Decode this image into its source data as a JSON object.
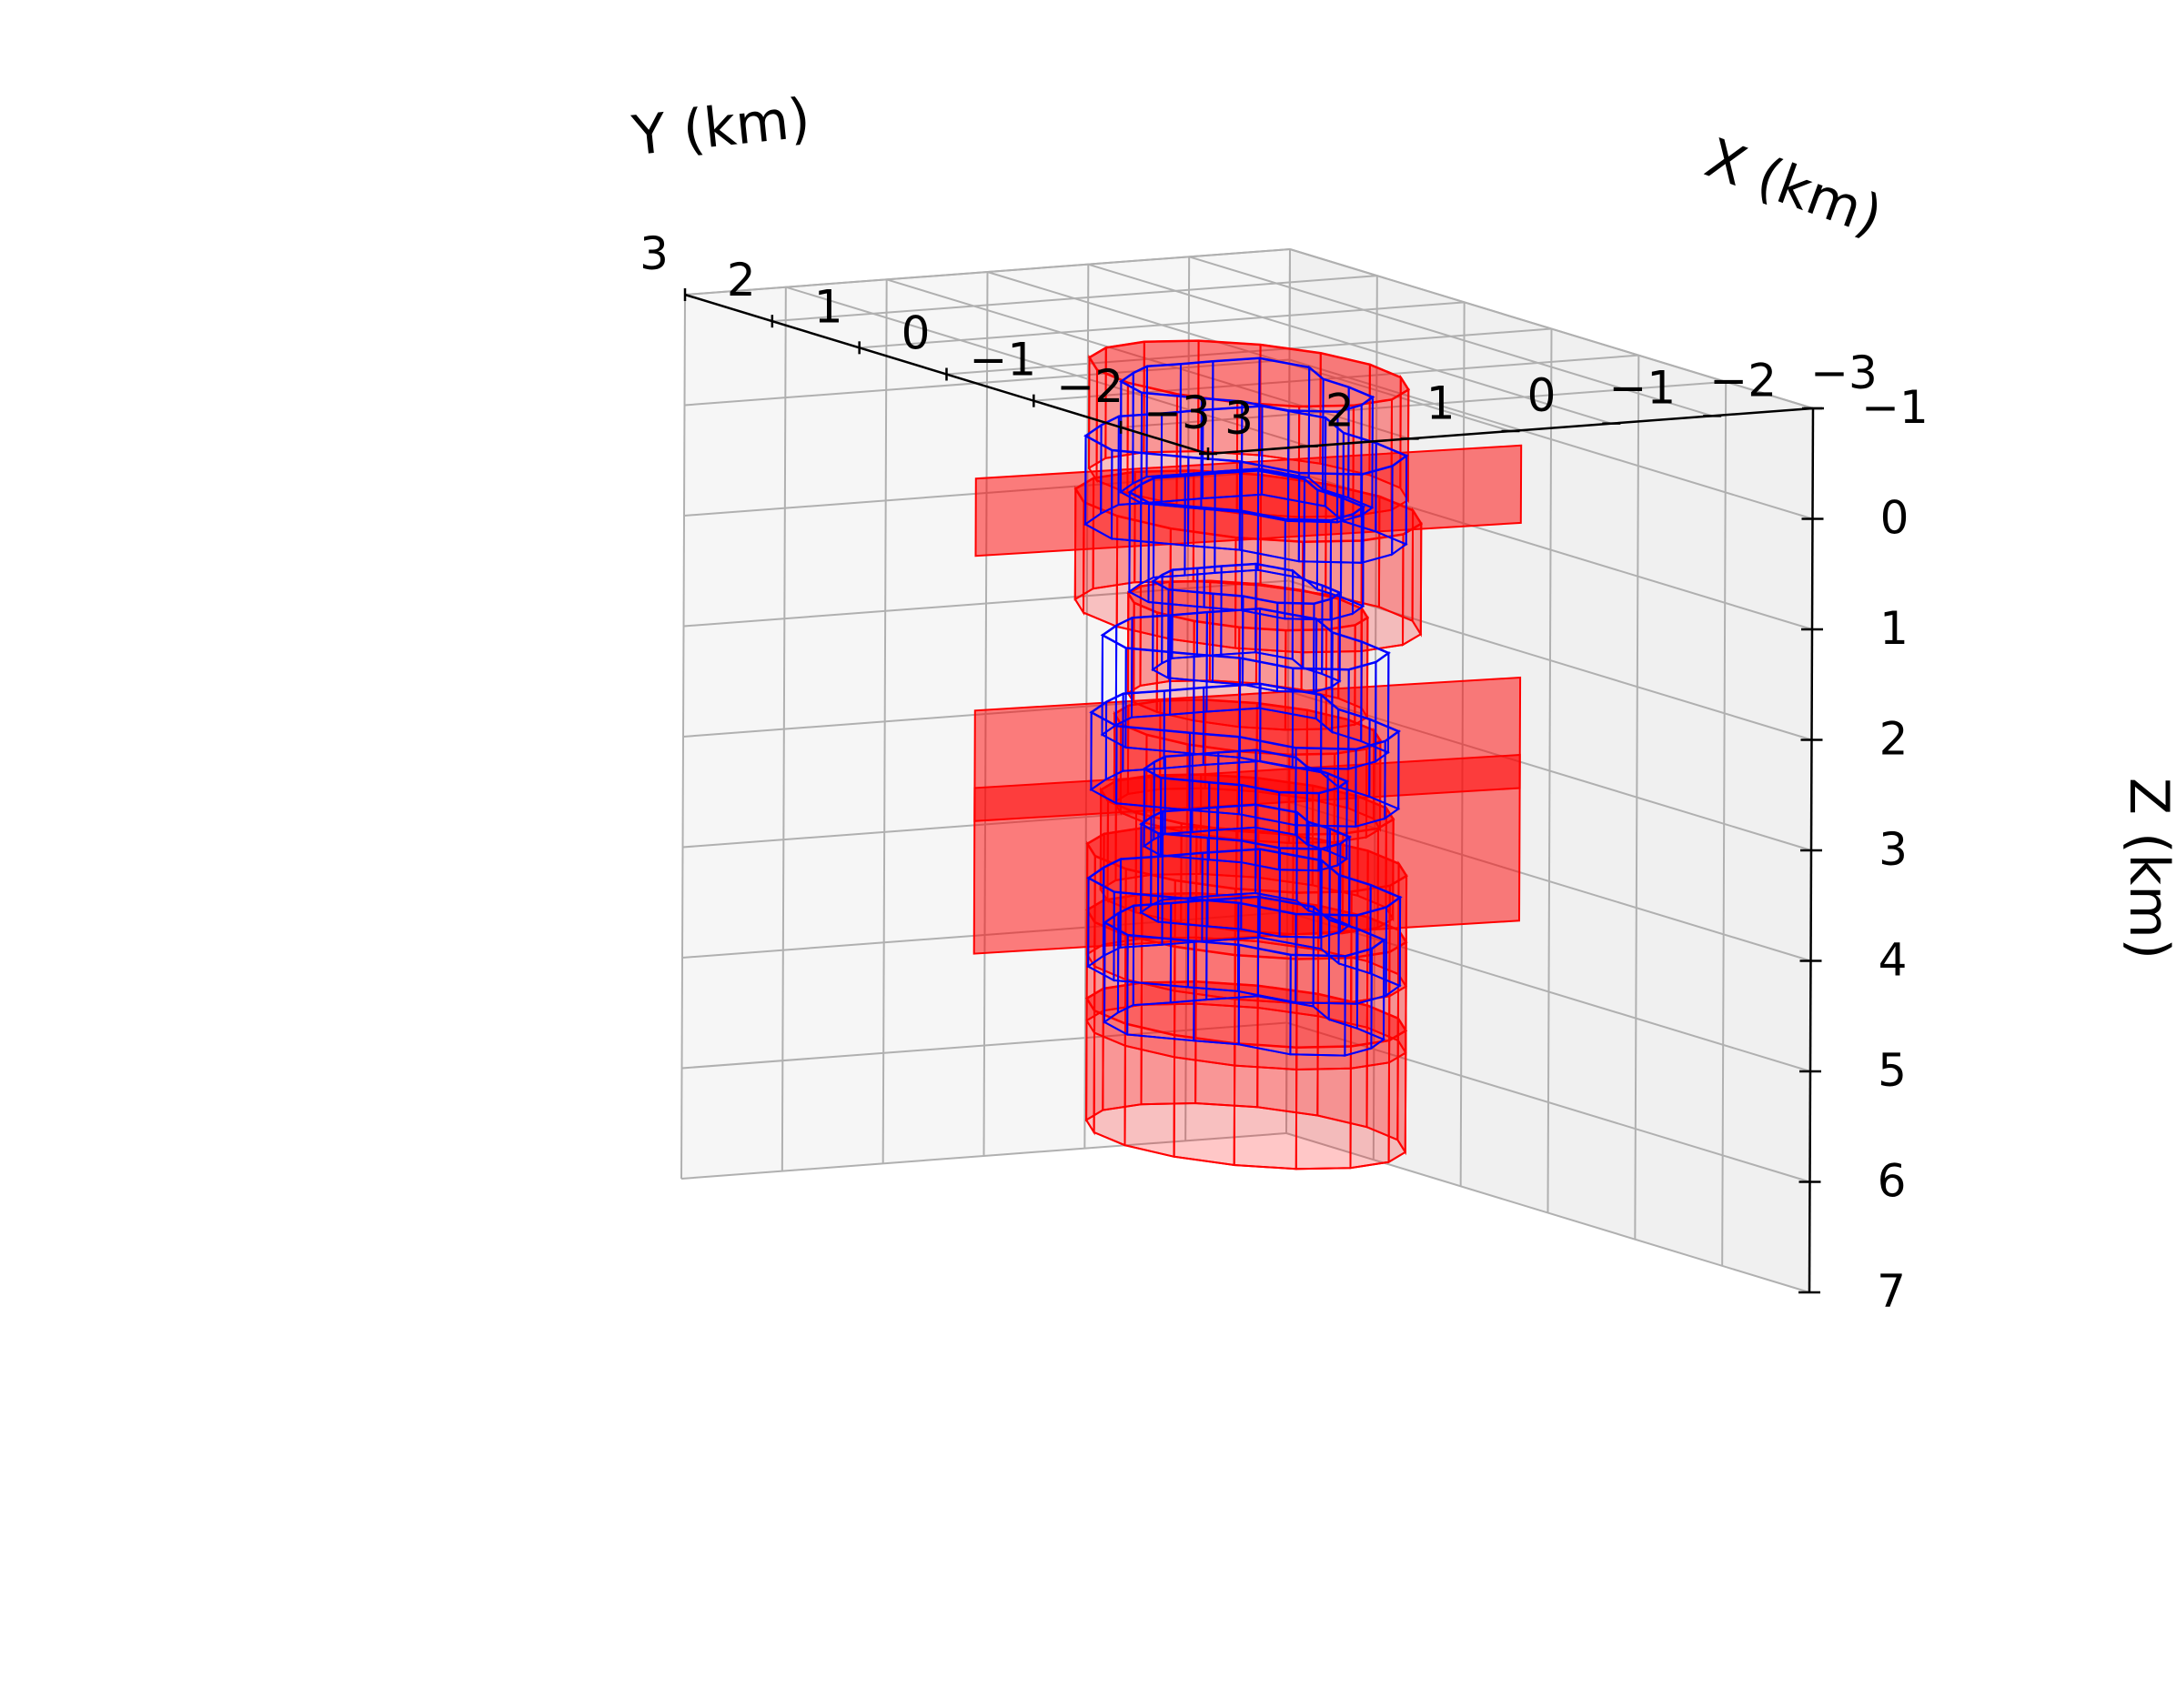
{
  "chart_data": {
    "type": "3d-prism-stack",
    "xlabel": "X (km)",
    "ylabel": "Y (km)",
    "zlabel": "Z (km)",
    "x_ticks": [
      "3",
      "2",
      "1",
      "0",
      "−1",
      "−2",
      "−3"
    ],
    "y_ticks": [
      "3",
      "2",
      "1",
      "0",
      "−1",
      "−2",
      "−3"
    ],
    "z_ticks": [
      "−1",
      "0",
      "1",
      "2",
      "3",
      "4",
      "5",
      "6",
      "7"
    ],
    "xlim": [
      -3,
      3
    ],
    "ylim": [
      -3,
      3
    ],
    "zlim": [
      -1,
      7
    ],
    "z_inverted": true,
    "grid": true,
    "series": [
      {
        "color": "#ff0000",
        "style": "filled",
        "bodies": [
          {
            "shape": "cylinder",
            "center": [
              0,
              0
            ],
            "radius": 1.2,
            "z_top": -0.8,
            "z_bottom": 0.2
          },
          {
            "shape": "slab",
            "center": [
              0,
              0
            ],
            "z_top": 0.0,
            "z_bottom": 0.7
          },
          {
            "shape": "cylinder",
            "center": [
              0,
              0
            ],
            "radius": 1.3,
            "z_top": 0.4,
            "z_bottom": 1.4
          },
          {
            "shape": "cylinder",
            "center": [
              0,
              0
            ],
            "radius": 0.9,
            "z_top": 1.3,
            "z_bottom": 2.2
          },
          {
            "shape": "slab",
            "center": [
              0,
              0
            ],
            "z_top": 2.1,
            "z_bottom": 3.1
          },
          {
            "shape": "cylinder",
            "center": [
              0,
              0
            ],
            "radius": 1.0,
            "z_top": 2.4,
            "z_bottom": 3.2
          },
          {
            "shape": "slab",
            "center": [
              0,
              0
            ],
            "z_top": 2.8,
            "z_bottom": 4.3
          },
          {
            "shape": "cylinder",
            "center": [
              0,
              0
            ],
            "radius": 1.1,
            "z_top": 3.1,
            "z_bottom": 4.0
          },
          {
            "shape": "cylinder",
            "center": [
              0,
              0
            ],
            "radius": 1.2,
            "z_top": 3.6,
            "z_bottom": 4.6
          },
          {
            "shape": "cylinder",
            "center": [
              0,
              0
            ],
            "radius": 1.2,
            "z_top": 4.2,
            "z_bottom": 5.2
          },
          {
            "shape": "cylinder",
            "center": [
              0,
              0
            ],
            "radius": 1.2,
            "z_top": 5.0,
            "z_bottom": 6.1
          }
        ]
      },
      {
        "color": "#0000ff",
        "style": "wireframe",
        "bodies": [
          {
            "shape": "irregular-prism",
            "center": [
              0,
              0
            ],
            "z_top": -0.7,
            "z_bottom": 0.3
          },
          {
            "shape": "irregular-prism",
            "center": [
              0,
              0
            ],
            "z_top": -0.2,
            "z_bottom": 0.6
          },
          {
            "shape": "irregular-prism",
            "center": [
              0,
              0
            ],
            "z_top": 0.3,
            "z_bottom": 1.2
          },
          {
            "shape": "irregular-prism",
            "center": [
              0,
              0
            ],
            "z_top": 1.1,
            "z_bottom": 1.9
          },
          {
            "shape": "irregular-prism",
            "center": [
              0,
              0
            ],
            "z_top": 1.6,
            "z_bottom": 2.5
          },
          {
            "shape": "irregular-prism",
            "center": [
              0,
              0
            ],
            "z_top": 2.3,
            "z_bottom": 3.0
          },
          {
            "shape": "irregular-prism",
            "center": [
              0,
              0
            ],
            "z_top": 2.8,
            "z_bottom": 3.5
          },
          {
            "shape": "irregular-prism",
            "center": [
              0,
              0
            ],
            "z_top": 3.3,
            "z_bottom": 4.1
          },
          {
            "shape": "irregular-prism",
            "center": [
              0,
              0
            ],
            "z_top": 3.8,
            "z_bottom": 4.6
          },
          {
            "shape": "irregular-prism",
            "center": [
              0,
              0
            ],
            "z_top": 4.2,
            "z_bottom": 5.1
          }
        ]
      }
    ]
  }
}
